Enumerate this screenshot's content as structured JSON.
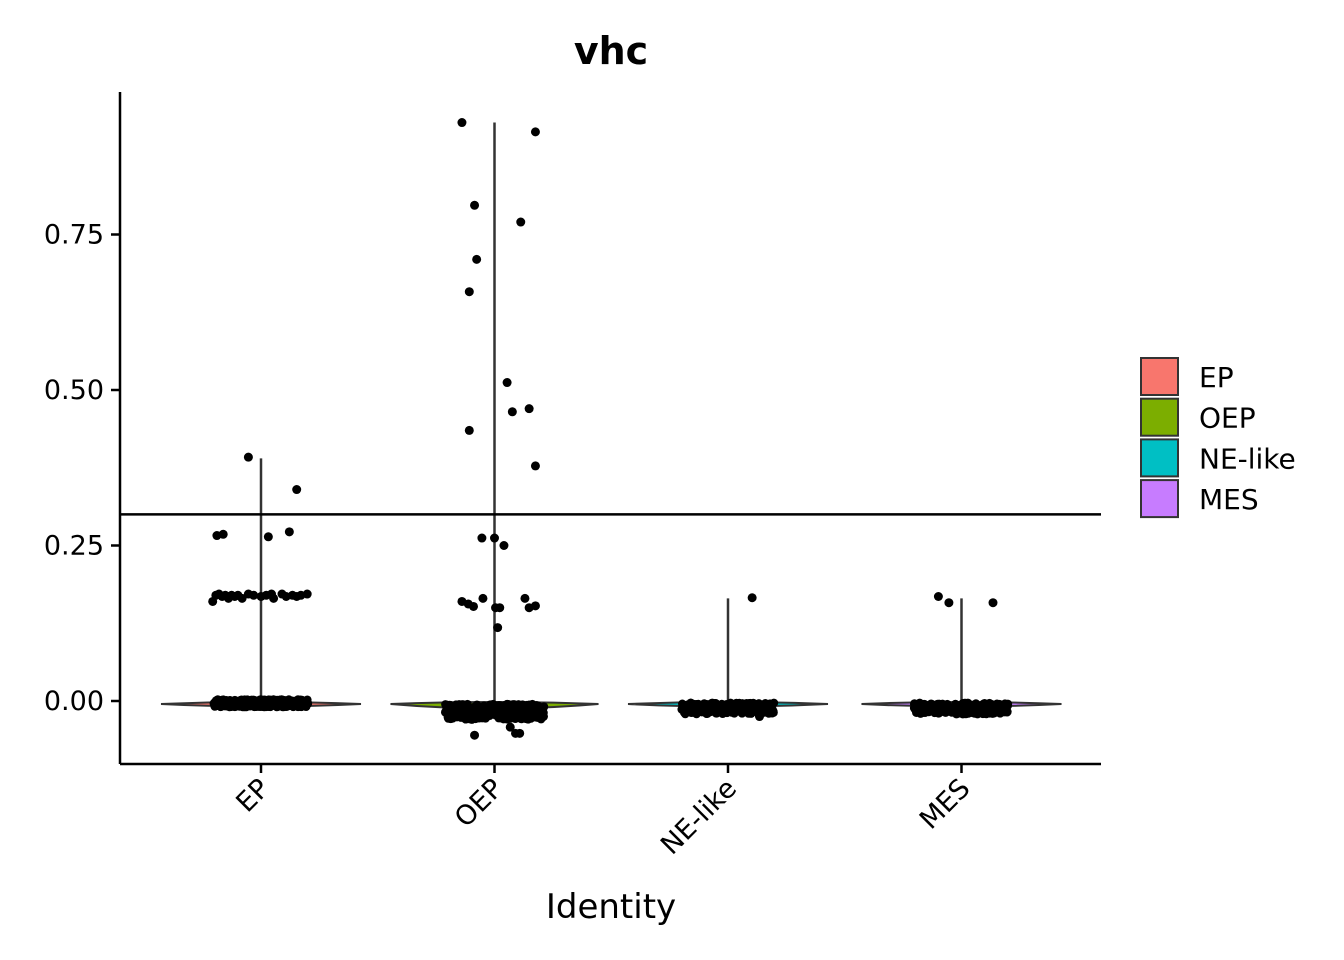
{
  "chart_data": {
    "type": "violin",
    "title": "vhc",
    "xlabel": "Identity",
    "ylabel": "",
    "ylim": [
      -0.105,
      0.98
    ],
    "yticks": [
      0.0,
      0.25,
      0.5,
      0.75
    ],
    "ytick_labels": [
      "0.00",
      "0.25",
      "0.50",
      "0.75"
    ],
    "threshold_line": 0.3,
    "legend_position": "right",
    "grid": false,
    "categories": [
      "EP",
      "OEP",
      "NE-like",
      "MES"
    ],
    "series": [
      {
        "name": "EP",
        "color": "#F8766D",
        "max": 0.39,
        "points": [
          [
            -0.46,
            0.16
          ],
          [
            -0.43,
            0.17
          ],
          [
            -0.4,
            0.172
          ],
          [
            -0.37,
            0.168
          ],
          [
            -0.34,
            0.17
          ],
          [
            -0.31,
            0.165
          ],
          [
            -0.28,
            0.17
          ],
          [
            -0.25,
            0.168
          ],
          [
            -0.22,
            0.17
          ],
          [
            -0.18,
            0.165
          ],
          [
            -0.12,
            0.172
          ],
          [
            -0.07,
            0.17
          ],
          [
            0.0,
            0.168
          ],
          [
            0.05,
            0.17
          ],
          [
            0.1,
            0.172
          ],
          [
            0.12,
            0.165
          ],
          [
            0.2,
            0.172
          ],
          [
            0.24,
            0.168
          ],
          [
            0.3,
            0.17
          ],
          [
            0.34,
            0.168
          ],
          [
            0.38,
            0.17
          ],
          [
            0.44,
            0.172
          ],
          [
            -0.42,
            0.266
          ],
          [
            -0.36,
            0.268
          ],
          [
            0.07,
            0.264
          ],
          [
            0.27,
            0.272
          ],
          [
            -0.12,
            0.392
          ],
          [
            0.34,
            0.34
          ]
        ]
      },
      {
        "name": "OEP",
        "color": "#7CAE00",
        "max": 0.93,
        "points": [
          [
            -0.31,
            0.93
          ],
          [
            0.39,
            0.915
          ],
          [
            -0.19,
            0.797
          ],
          [
            0.25,
            0.77
          ],
          [
            -0.17,
            0.71
          ],
          [
            -0.24,
            0.658
          ],
          [
            0.12,
            0.512
          ],
          [
            0.17,
            0.465
          ],
          [
            0.33,
            0.47
          ],
          [
            -0.24,
            0.435
          ],
          [
            0.39,
            0.378
          ],
          [
            -0.12,
            0.262
          ],
          [
            0.0,
            0.262
          ],
          [
            0.09,
            0.25
          ],
          [
            -0.31,
            0.16
          ],
          [
            -0.25,
            0.156
          ],
          [
            -0.2,
            0.152
          ],
          [
            -0.11,
            0.165
          ],
          [
            0.01,
            0.15
          ],
          [
            0.05,
            0.15
          ],
          [
            0.03,
            0.118
          ],
          [
            0.29,
            0.165
          ],
          [
            0.33,
            0.15
          ],
          [
            0.39,
            0.153
          ],
          [
            -0.19,
            -0.055
          ],
          [
            0.15,
            -0.042
          ],
          [
            0.2,
            -0.052
          ],
          [
            0.24,
            -0.052
          ]
        ]
      },
      {
        "name": "NE-like",
        "color": "#00BFC4",
        "max": 0.165,
        "points": [
          [
            0.23,
            0.166
          ],
          [
            0.3,
            -0.025
          ]
        ]
      },
      {
        "name": "MES",
        "color": "#C77CFF",
        "max": 0.165,
        "points": [
          [
            -0.22,
            0.168
          ],
          [
            -0.12,
            0.158
          ],
          [
            0.3,
            0.158
          ]
        ]
      }
    ]
  }
}
